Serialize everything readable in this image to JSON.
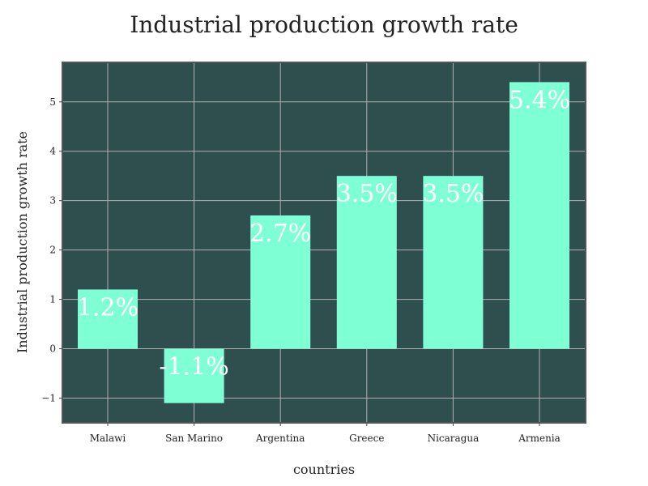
{
  "chart_data": {
    "type": "bar",
    "title": "Industrial production growth rate",
    "xlabel": "countries",
    "ylabel": "Industrial production growth rate",
    "categories": [
      "Malawi",
      "San Marino",
      "Argentina",
      "Greece",
      "Nicaragua",
      "Armenia"
    ],
    "values": [
      1.2,
      -1.1,
      2.7,
      3.5,
      3.5,
      5.4
    ],
    "data_labels": [
      "1.2%",
      "-1.1%",
      "2.7%",
      "3.5%",
      "3.5%",
      "5.4%"
    ],
    "ylim": [
      -1.5,
      5.8
    ],
    "yticks": [
      -1,
      0,
      1,
      2,
      3,
      4,
      5
    ],
    "ytick_labels": [
      "−1",
      "0",
      "1",
      "2",
      "3",
      "4",
      "5"
    ],
    "grid": true,
    "colors": {
      "plot_background": "#2f4f4f",
      "bar": "#7fffd4",
      "grid": "#b0b0b0",
      "frame": "#555555",
      "label": "#ffffff"
    }
  }
}
